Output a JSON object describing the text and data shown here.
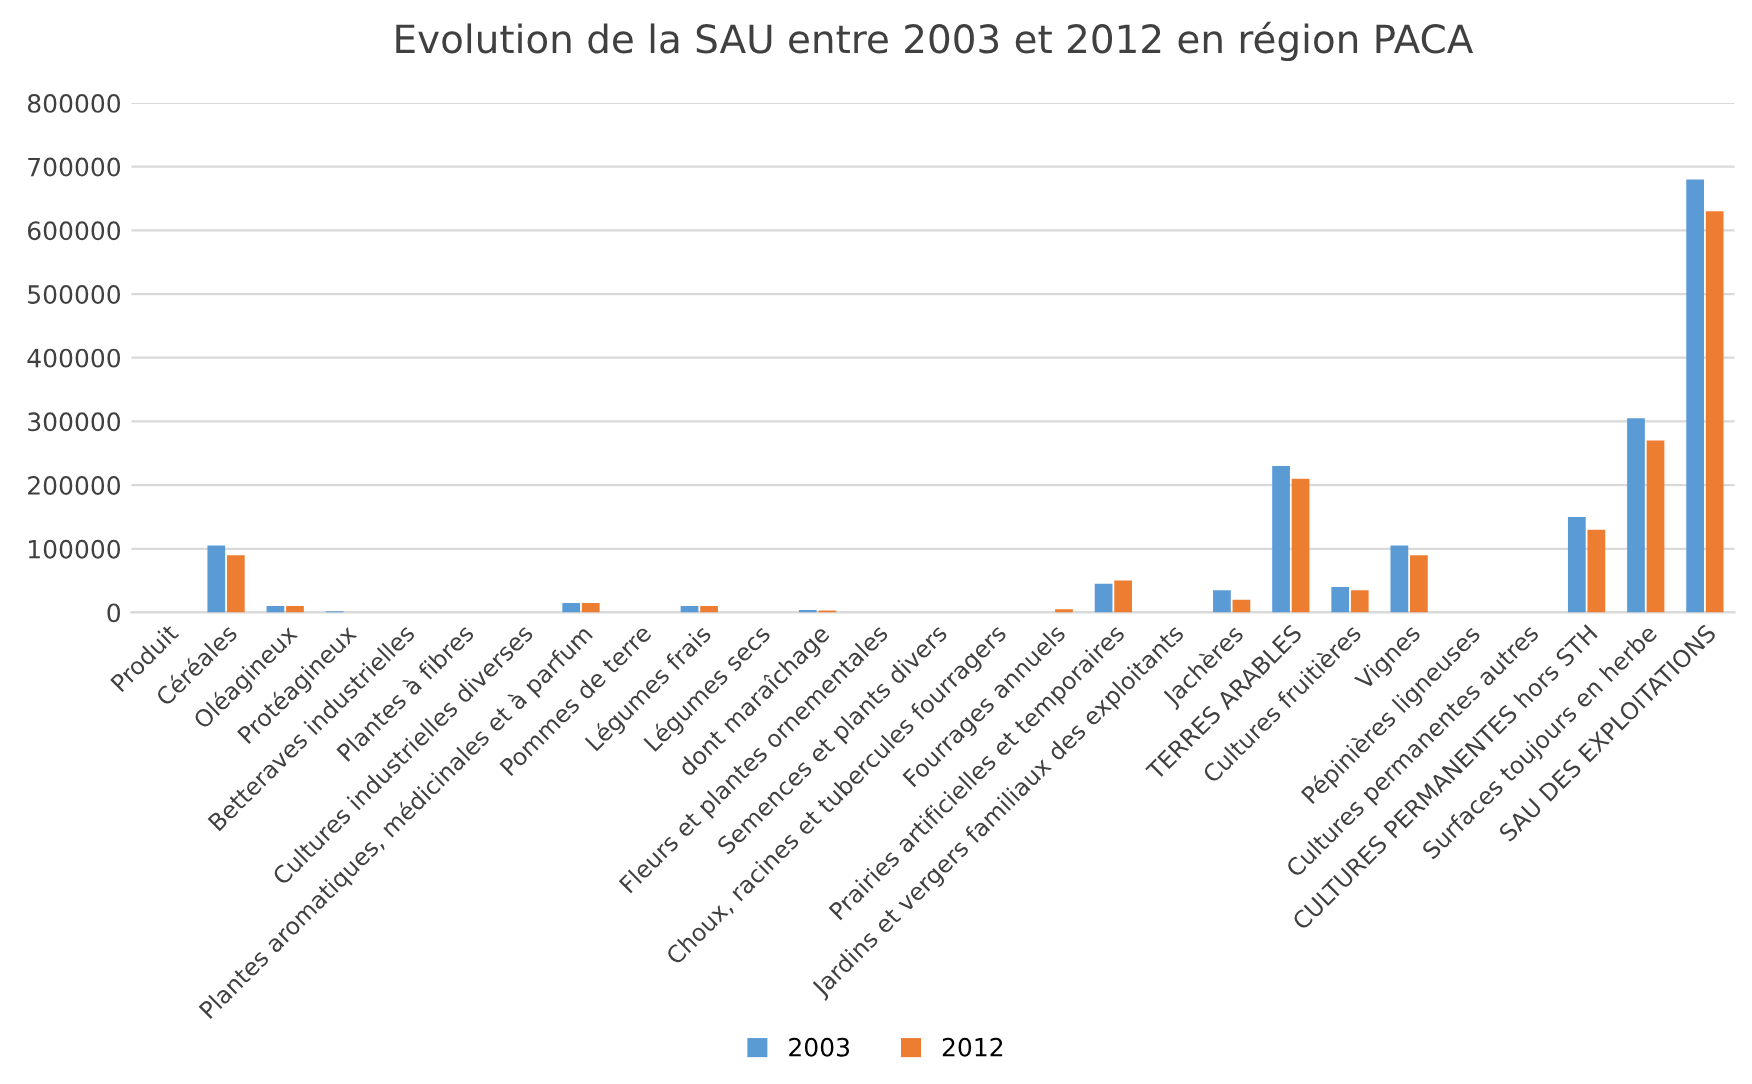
{
  "chart_data": {
    "type": "bar",
    "title": "Evolution de la SAU entre 2003 et 2012 en région PACA",
    "categories": [
      "Produit",
      "Céréales",
      "Oléagineux",
      "Protéagineux",
      "Betteraves industrielles",
      "Plantes à fibres",
      "Cultures industrielles diverses",
      "Plantes aromatiques, médicinales et à parfum",
      "Pommes de terre",
      "Légumes frais",
      "Légumes secs",
      "dont maraîchage",
      "Fleurs et plantes ornementales",
      "Semences et plants divers",
      "Choux, racines et tubercules fourragers",
      "Fourrages annuels",
      "Prairies artificielles et temporaires",
      "Jardins et vergers familiaux des exploitants",
      "Jachères",
      "TERRES ARABLES",
      "Cultures fruitières",
      "Vignes",
      "Pépinières ligneuses",
      "Cultures permanentes autres",
      "CULTURES PERMANENTES hors STH",
      "Surfaces toujours en herbe",
      "SAU DES EXPLOITATIONS"
    ],
    "series": [
      {
        "name": "2003",
        "color": "#5b9bd5",
        "values": [
          null,
          105000,
          10000,
          2000,
          null,
          null,
          null,
          15000,
          null,
          10000,
          null,
          4000,
          null,
          null,
          null,
          null,
          45000,
          null,
          35000,
          230000,
          40000,
          105000,
          null,
          null,
          150000,
          305000,
          680000
        ]
      },
      {
        "name": "2012",
        "color": "#ed7d31",
        "values": [
          null,
          90000,
          10000,
          null,
          null,
          null,
          null,
          15000,
          null,
          10000,
          null,
          3000,
          null,
          null,
          null,
          5000,
          50000,
          null,
          20000,
          210000,
          35000,
          90000,
          null,
          null,
          130000,
          270000,
          630000
        ]
      }
    ],
    "ylim": [
      0,
      800000
    ],
    "yticks": [
      0,
      100000,
      200000,
      300000,
      400000,
      500000,
      600000,
      700000,
      800000
    ],
    "grid": "y",
    "legend": "bottom"
  }
}
